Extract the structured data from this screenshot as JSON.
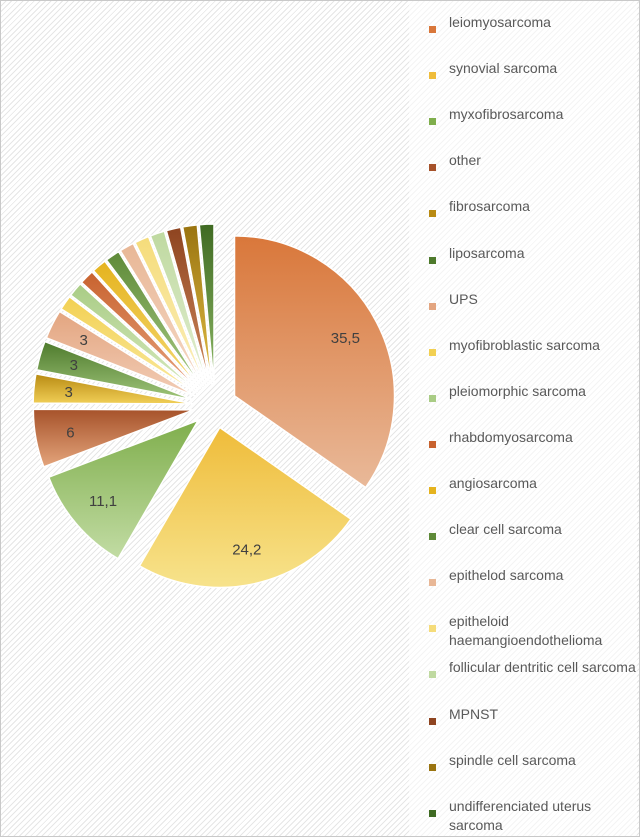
{
  "chart_data": {
    "type": "pie",
    "exploded": true,
    "slices": [
      {
        "name": "leiomyosarcoma",
        "value": 35.5,
        "label": "35,5",
        "color": "#D9773A",
        "color2": "#E9B999"
      },
      {
        "name": "synovial sarcoma",
        "value": 24.2,
        "label": "24,2",
        "color": "#EFBC3A",
        "color2": "#F7E38C"
      },
      {
        "name": "myxofibrosarcoma",
        "value": 11.1,
        "label": "11,1",
        "color": "#7FAE4C",
        "color2": "#C2DCA4"
      },
      {
        "name": "other",
        "value": 6,
        "label": "6",
        "color": "#A6522A",
        "color2": "#E4A57C"
      },
      {
        "name": "fibrosarcoma",
        "value": 3,
        "label": "3",
        "color": "#B88A12",
        "color2": "#F1CF57"
      },
      {
        "name": "liposarcoma",
        "value": 3,
        "label": "3",
        "color": "#4E7A2C",
        "color2": "#9FC57A"
      },
      {
        "name": "UPS",
        "value": 3,
        "label": "3",
        "color": "#E3A580",
        "color2": "#F2CDB6"
      },
      {
        "name": "myofibroblastic sarcoma",
        "value": 1.5,
        "label": "",
        "color": "#F2D052",
        "color2": "#FAEAA0"
      },
      {
        "name": "pleiomorphic sarcoma",
        "value": 1.5,
        "label": "",
        "color": "#A9CC85",
        "color2": "#D7EABF"
      },
      {
        "name": "rhabdomyosarcoma",
        "value": 1.5,
        "label": "",
        "color": "#C8622E",
        "color2": "#E7A47F"
      },
      {
        "name": "angiosarcoma",
        "value": 1.5,
        "label": "",
        "color": "#E5B31E",
        "color2": "#F5DA75"
      },
      {
        "name": "clear cell sarcoma",
        "value": 1.5,
        "label": "",
        "color": "#5E8A38",
        "color2": "#A8CB85"
      },
      {
        "name": "epithelod sarcoma",
        "value": 1.5,
        "label": "",
        "color": "#E8B796",
        "color2": "#F5D8C5"
      },
      {
        "name": "epitheloid haemangioendothelioma",
        "value": 1.5,
        "label": "",
        "color": "#F5DC7A",
        "color2": "#FBEFBD"
      },
      {
        "name": "follicular dentritic cell sarcoma",
        "value": 1.5,
        "label": "",
        "color": "#BFD9A0",
        "color2": "#E2EFD2"
      },
      {
        "name": "MPNST",
        "value": 1.5,
        "label": "",
        "color": "#8E4420",
        "color2": "#D08A5E"
      },
      {
        "name": "spindle cell sarcoma",
        "value": 1.5,
        "label": "",
        "color": "#9A7410",
        "color2": "#E2BE45"
      },
      {
        "name": "undifferenciated uterus sarcoma",
        "value": 1.5,
        "label": "",
        "color": "#3F6A22",
        "color2": "#8DB866"
      }
    ]
  },
  "legend": {
    "items": [
      {
        "label": "leiomyosarcoma",
        "color": "#D9773A"
      },
      {
        "label": "synovial sarcoma",
        "color": "#EFBC3A"
      },
      {
        "label": "myxofibrosarcoma",
        "color": "#7FAE4C"
      },
      {
        "label": "other",
        "color": "#A6522A"
      },
      {
        "label": "fibrosarcoma",
        "color": "#B88A12"
      },
      {
        "label": "liposarcoma",
        "color": "#4E7A2C"
      },
      {
        "label": "UPS",
        "color": "#E3A580"
      },
      {
        "label": "myofibroblastic sarcoma",
        "color": "#F2D052"
      },
      {
        "label": "pleiomorphic sarcoma",
        "color": "#A9CC85"
      },
      {
        "label": "rhabdomyosarcoma",
        "color": "#C8622E"
      },
      {
        "label": "angiosarcoma",
        "color": "#E5B31E"
      },
      {
        "label": "clear cell sarcoma",
        "color": "#5E8A38"
      },
      {
        "label": "epithelod sarcoma",
        "color": "#E8B796"
      },
      {
        "label": "epitheloid haemangioendothelioma",
        "color": "#F5DC7A"
      },
      {
        "label": "follicular dentritic cell sarcoma",
        "color": "#BFD9A0"
      },
      {
        "label": "MPNST",
        "color": "#8E4420"
      },
      {
        "label": "spindle cell sarcoma",
        "color": "#9A7410"
      },
      {
        "label": "undifferenciated uterus sarcoma",
        "color": "#3F6A22"
      }
    ]
  }
}
